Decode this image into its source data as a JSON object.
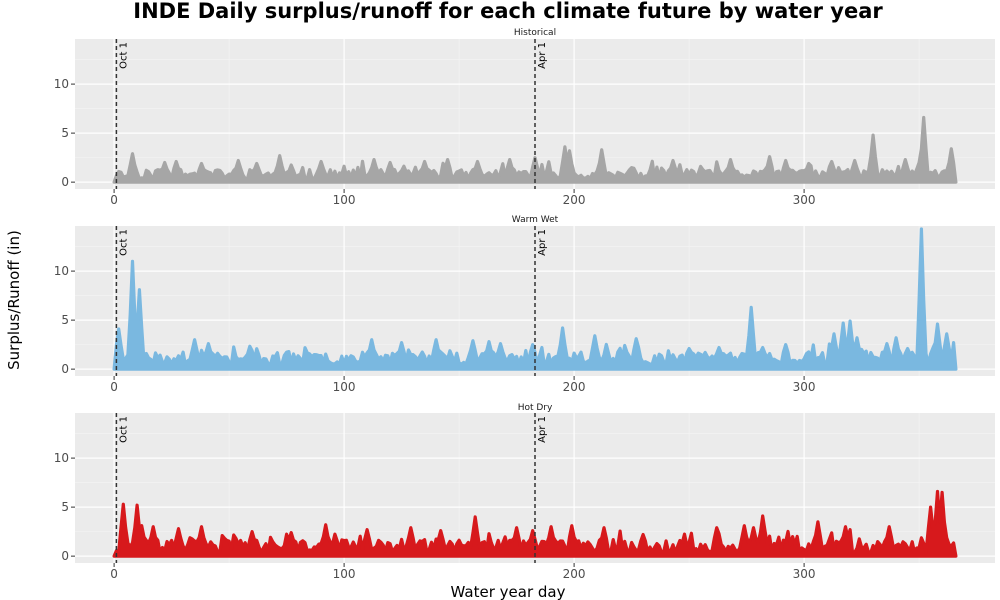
{
  "chart_data": {
    "type": "area",
    "title": "INDE Daily surplus/runoff for each climate future by water year",
    "xlabel": "Water year day",
    "ylabel": "Surplus/Runoff (in)",
    "xlim": [
      -17,
      383
    ],
    "ylim": [
      -0.7,
      14.6
    ],
    "x_ticks": [
      0,
      100,
      200,
      300
    ],
    "y_ticks": [
      0,
      5,
      10
    ],
    "grid": true,
    "legend": "none",
    "vlines": [
      {
        "x": 1,
        "label": "Oct 1"
      },
      {
        "x": 183,
        "label": "Apr 1"
      }
    ],
    "series": [
      {
        "name": "Historical",
        "color": "#a6a6a6",
        "baseline": 0.8,
        "noise": 0.6,
        "seed": 11,
        "peaks": [
          [
            8,
            2.9
          ],
          [
            22,
            2.0
          ],
          [
            27,
            2.1
          ],
          [
            38,
            1.9
          ],
          [
            54,
            2.2
          ],
          [
            62,
            1.9
          ],
          [
            72,
            2.7
          ],
          [
            90,
            2.1
          ],
          [
            113,
            2.3
          ],
          [
            120,
            2.0
          ],
          [
            135,
            2.1
          ],
          [
            145,
            2.3
          ],
          [
            158,
            2.1
          ],
          [
            172,
            2.3
          ],
          [
            183,
            2.5
          ],
          [
            196,
            3.6
          ],
          [
            198,
            3.2
          ],
          [
            212,
            3.3
          ],
          [
            243,
            2.2
          ],
          [
            268,
            2.3
          ],
          [
            285,
            2.6
          ],
          [
            292,
            2.2
          ],
          [
            302,
            1.9
          ],
          [
            312,
            2.1
          ],
          [
            322,
            2.2
          ],
          [
            330,
            4.8
          ],
          [
            344,
            2.3
          ],
          [
            350,
            2.0
          ],
          [
            352,
            6.6
          ],
          [
            364,
            3.4
          ]
        ]
      },
      {
        "name": "Warm Wet",
        "color": "#7ab8e0",
        "baseline": 1.1,
        "noise": 0.8,
        "seed": 23,
        "peaks": [
          [
            2,
            4.1
          ],
          [
            8,
            11.0
          ],
          [
            11,
            8.1
          ],
          [
            35,
            3.0
          ],
          [
            41,
            2.6
          ],
          [
            112,
            3.0
          ],
          [
            125,
            2.7
          ],
          [
            140,
            3.0
          ],
          [
            156,
            2.9
          ],
          [
            163,
            2.8
          ],
          [
            168,
            2.6
          ],
          [
            182,
            2.5
          ],
          [
            195,
            4.2
          ],
          [
            209,
            3.4
          ],
          [
            227,
            3.1
          ],
          [
            250,
            2.1
          ],
          [
            263,
            2.2
          ],
          [
            277,
            6.3
          ],
          [
            282,
            2.2
          ],
          [
            292,
            2.5
          ],
          [
            313,
            3.6
          ],
          [
            317,
            4.7
          ],
          [
            320,
            4.9
          ],
          [
            323,
            3.2
          ],
          [
            336,
            2.6
          ],
          [
            340,
            3.2
          ],
          [
            345,
            2.1
          ],
          [
            351,
            14.3
          ],
          [
            358,
            4.6
          ],
          [
            362,
            3.6
          ]
        ]
      },
      {
        "name": "Hot Dry",
        "color": "#d7191c",
        "baseline": 1.0,
        "noise": 0.8,
        "seed": 37,
        "peaks": [
          [
            4,
            5.3
          ],
          [
            10,
            5.2
          ],
          [
            12,
            3.1
          ],
          [
            17,
            3.0
          ],
          [
            28,
            2.8
          ],
          [
            38,
            3.0
          ],
          [
            60,
            2.5
          ],
          [
            77,
            2.4
          ],
          [
            92,
            3.2
          ],
          [
            110,
            2.7
          ],
          [
            129,
            2.9
          ],
          [
            142,
            2.6
          ],
          [
            157,
            4.0
          ],
          [
            175,
            2.9
          ],
          [
            182,
            2.6
          ],
          [
            190,
            3.0
          ],
          [
            199,
            3.1
          ],
          [
            213,
            2.9
          ],
          [
            230,
            2.2
          ],
          [
            262,
            2.9
          ],
          [
            274,
            3.1
          ],
          [
            278,
            2.9
          ],
          [
            282,
            4.1
          ],
          [
            306,
            3.5
          ],
          [
            318,
            3.0
          ],
          [
            337,
            3.0
          ],
          [
            355,
            5.0
          ],
          [
            358,
            6.6
          ],
          [
            360,
            6.5
          ],
          [
            365,
            1.0
          ]
        ]
      }
    ]
  }
}
